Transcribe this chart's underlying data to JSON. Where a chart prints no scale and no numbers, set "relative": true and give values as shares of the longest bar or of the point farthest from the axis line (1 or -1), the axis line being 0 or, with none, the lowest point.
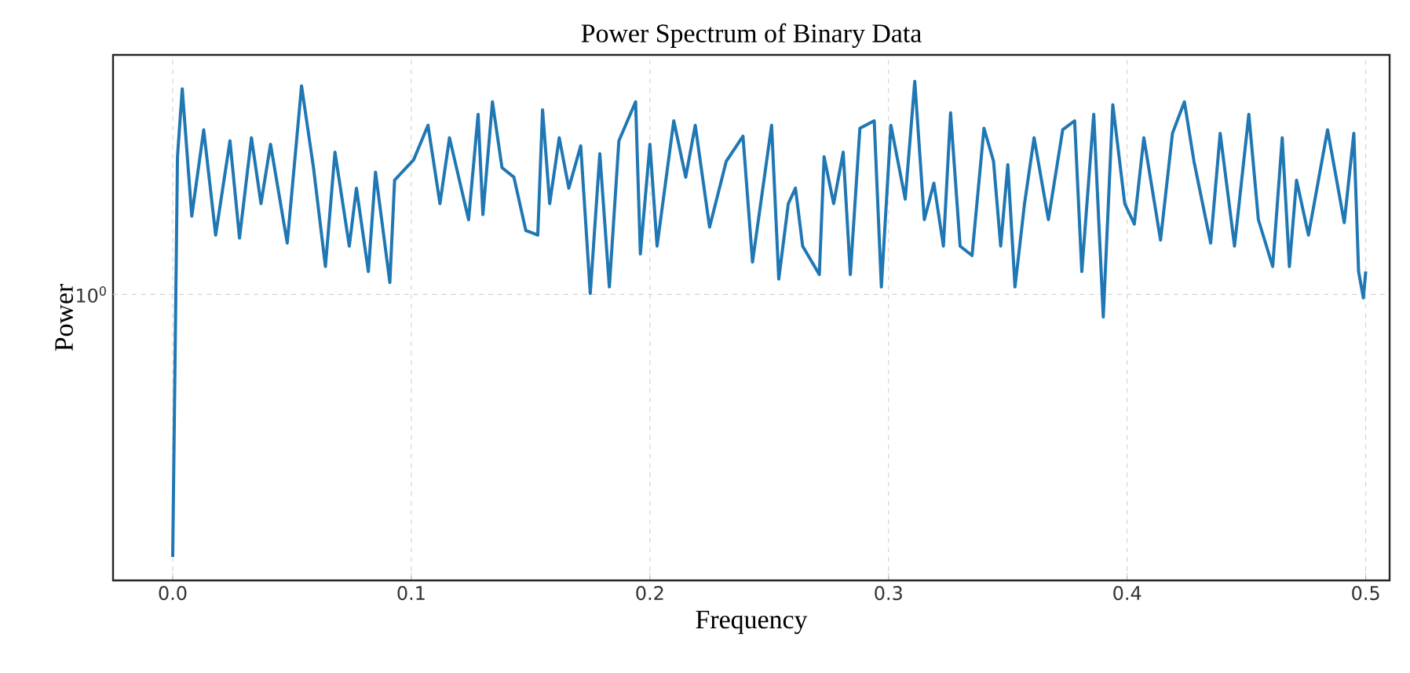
{
  "chart_data": {
    "type": "line",
    "title": "Power Spectrum of Binary Data",
    "xlabel": "Frequency",
    "ylabel": "Power",
    "relative": true,
    "grid": "x",
    "marker": "none",
    "line_style": "solid",
    "xlim": [
      -0.025,
      0.51
    ],
    "xticks": [
      {
        "value": 0.0,
        "label": "0.0"
      },
      0.1,
      0.2,
      0.3,
      0.4,
      0.5
    ],
    "ref_lines": [
      {
        "axis": "y",
        "value": 0.573,
        "color": "#d3d3d3",
        "line_style": "dashed"
      }
    ],
    "annotations": [
      {
        "text": "10$^{0}$",
        "x": -0.025,
        "y": 0.573
      }
    ],
    "series": [
      {
        "color": "#1f77b4",
        "x": [
          0,
          0.002,
          0.004,
          0.008,
          0.013,
          0.018,
          0.024,
          0.028,
          0.033,
          0.037,
          0.041,
          0.048,
          0.054,
          0.059,
          0.064,
          0.068,
          0.074,
          0.077,
          0.082,
          0.085,
          0.091,
          0.093,
          0.101,
          0.107,
          0.112,
          0.116,
          0.124,
          0.128,
          0.13,
          0.134,
          0.138,
          0.143,
          0.148,
          0.153,
          0.155,
          0.158,
          0.162,
          0.166,
          0.171,
          0.175,
          0.179,
          0.183,
          0.187,
          0.194,
          0.196,
          0.2,
          0.203,
          0.21,
          0.215,
          0.219,
          0.225,
          0.232,
          0.239,
          0.243,
          0.251,
          0.254,
          0.258,
          0.261,
          0.264,
          0.271,
          0.273,
          0.277,
          0.281,
          0.284,
          0.288,
          0.294,
          0.297,
          0.301,
          0.307,
          0.311,
          0.315,
          0.319,
          0.323,
          0.326,
          0.33,
          0.335,
          0.34,
          0.344,
          0.347,
          0.35,
          0.353,
          0.357,
          0.361,
          0.367,
          0.373,
          0.378,
          0.381,
          0.386,
          0.39,
          0.394,
          0.399,
          0.403,
          0.407,
          0.414,
          0.419,
          0.424,
          0.428,
          0.435,
          0.439,
          0.445,
          0.451,
          0.455,
          0.461,
          0.465,
          0.468,
          0.471,
          0.476,
          0.484,
          0.491,
          0.495,
          0.497,
          0.499,
          0.5
        ],
        "values": [
          0.047,
          0.849,
          0.985,
          0.73,
          0.903,
          0.692,
          0.881,
          0.686,
          0.887,
          0.755,
          0.874,
          0.676,
          0.991,
          0.827,
          0.629,
          0.858,
          0.67,
          0.786,
          0.619,
          0.818,
          0.597,
          0.802,
          0.843,
          0.912,
          0.755,
          0.887,
          0.723,
          0.934,
          0.733,
          0.959,
          0.827,
          0.808,
          0.701,
          0.692,
          0.943,
          0.755,
          0.887,
          0.786,
          0.871,
          0.575,
          0.855,
          0.588,
          0.881,
          0.959,
          0.654,
          0.874,
          0.67,
          0.921,
          0.808,
          0.912,
          0.708,
          0.84,
          0.89,
          0.638,
          0.912,
          0.604,
          0.755,
          0.786,
          0.67,
          0.613,
          0.849,
          0.755,
          0.858,
          0.613,
          0.906,
          0.921,
          0.588,
          0.912,
          0.764,
          1,
          0.723,
          0.796,
          0.67,
          0.937,
          0.67,
          0.651,
          0.906,
          0.84,
          0.67,
          0.833,
          0.588,
          0.755,
          0.887,
          0.723,
          0.903,
          0.921,
          0.619,
          0.934,
          0.528,
          0.953,
          0.755,
          0.714,
          0.887,
          0.682,
          0.896,
          0.959,
          0.84,
          0.676,
          0.896,
          0.67,
          0.934,
          0.723,
          0.629,
          0.887,
          0.629,
          0.802,
          0.692,
          0.903,
          0.717,
          0.896,
          0.619,
          0.566,
          0.619
        ]
      }
    ]
  }
}
